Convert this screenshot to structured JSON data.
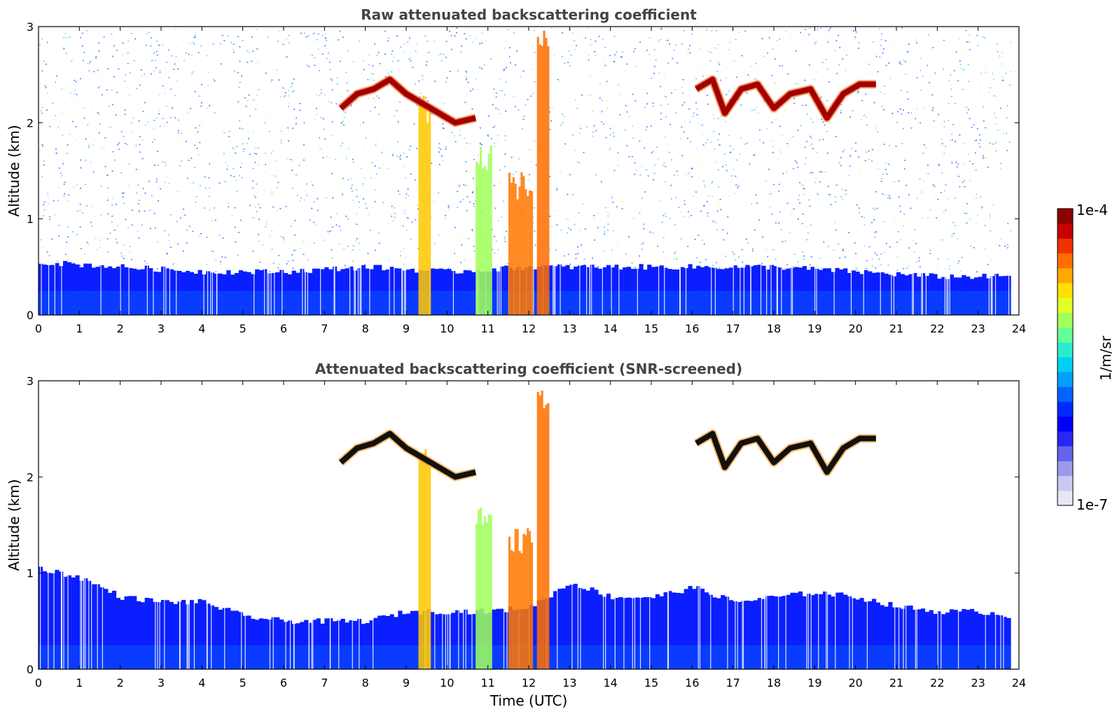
{
  "chart_data": [
    {
      "type": "heatmap",
      "title": "Raw attenuated backscattering coefficient",
      "xlabel": "",
      "ylabel": "Altitude (km)",
      "xlim": [
        0,
        24
      ],
      "ylim": [
        0,
        3
      ],
      "x_ticks": [
        "0",
        "1",
        "2",
        "3",
        "4",
        "5",
        "6",
        "7",
        "8",
        "9",
        "10",
        "11",
        "12",
        "13",
        "14",
        "15",
        "16",
        "17",
        "18",
        "19",
        "20",
        "21",
        "22",
        "23",
        "24"
      ],
      "y_ticks": [
        "0",
        "1",
        "2",
        "3"
      ],
      "screened": false,
      "features": {
        "boundary_layer_top_km": [
          [
            0,
            0.55
          ],
          [
            2,
            0.5
          ],
          [
            4,
            0.45
          ],
          [
            6,
            0.45
          ],
          [
            8,
            0.5
          ],
          [
            10,
            0.45
          ],
          [
            12,
            0.5
          ],
          [
            14,
            0.5
          ],
          [
            16,
            0.5
          ],
          [
            18,
            0.5
          ],
          [
            20,
            0.45
          ],
          [
            22,
            0.4
          ],
          [
            23.8,
            0.4
          ]
        ],
        "cloud_layers": [
          {
            "x": [
              7.4,
              7.8,
              8.2,
              8.6,
              9.0,
              9.4,
              9.8,
              10.2,
              10.7
            ],
            "y_km": [
              2.15,
              2.3,
              2.35,
              2.45,
              2.3,
              2.2,
              2.1,
              2.0,
              2.05
            ]
          },
          {
            "x": [
              16.1,
              16.5,
              16.8,
              17.2,
              17.6,
              18.0,
              18.4,
              18.9,
              19.3,
              19.7,
              20.1,
              20.5
            ],
            "y_km": [
              2.35,
              2.45,
              2.1,
              2.35,
              2.4,
              2.15,
              2.3,
              2.35,
              2.05,
              2.3,
              2.4,
              2.4
            ]
          }
        ],
        "precipitation_columns_utc": [
          [
            9.3,
            9.6
          ],
          [
            10.7,
            11.1
          ],
          [
            11.5,
            12.1
          ],
          [
            12.2,
            12.5
          ]
        ]
      }
    },
    {
      "type": "heatmap",
      "title": "Attenuated backscattering coefficient (SNR-screened)",
      "xlabel": "Time (UTC)",
      "ylabel": "Altitude (km)",
      "xlim": [
        0,
        24
      ],
      "ylim": [
        0,
        3
      ],
      "x_ticks": [
        "0",
        "1",
        "2",
        "3",
        "4",
        "5",
        "6",
        "7",
        "8",
        "9",
        "10",
        "11",
        "12",
        "13",
        "14",
        "15",
        "16",
        "17",
        "18",
        "19",
        "20",
        "21",
        "22",
        "23",
        "24"
      ],
      "y_ticks": [
        "0",
        "1",
        "2",
        "3"
      ],
      "screened": true,
      "features": {
        "boundary_layer_top_km": [
          [
            0,
            1.05
          ],
          [
            1,
            0.95
          ],
          [
            2,
            0.75
          ],
          [
            3,
            0.7
          ],
          [
            4,
            0.7
          ],
          [
            5,
            0.55
          ],
          [
            6,
            0.5
          ],
          [
            7,
            0.5
          ],
          [
            8,
            0.5
          ],
          [
            9,
            0.6
          ],
          [
            10,
            0.6
          ],
          [
            11,
            0.6
          ],
          [
            12,
            0.65
          ],
          [
            13,
            0.9
          ],
          [
            14,
            0.75
          ],
          [
            15,
            0.75
          ],
          [
            16,
            0.85
          ],
          [
            17,
            0.7
          ],
          [
            18,
            0.75
          ],
          [
            19,
            0.8
          ],
          [
            20,
            0.75
          ],
          [
            21,
            0.65
          ],
          [
            22,
            0.6
          ],
          [
            23,
            0.6
          ],
          [
            23.8,
            0.55
          ]
        ]
      }
    }
  ],
  "colorbar": {
    "label": "1/m/sr",
    "max_label": "1e-4",
    "min_label": "1e-7",
    "colors": [
      "#e6e6f5",
      "#c8c8f0",
      "#9a9aeb",
      "#6464ee",
      "#2828f5",
      "#0000ff",
      "#0028ff",
      "#0064ff",
      "#00a0ff",
      "#00d0f0",
      "#28ecd0",
      "#64ff96",
      "#a0ff5a",
      "#e0ff28",
      "#ffe000",
      "#ffa800",
      "#ff6e00",
      "#f03200",
      "#c80000",
      "#8b0000"
    ]
  }
}
